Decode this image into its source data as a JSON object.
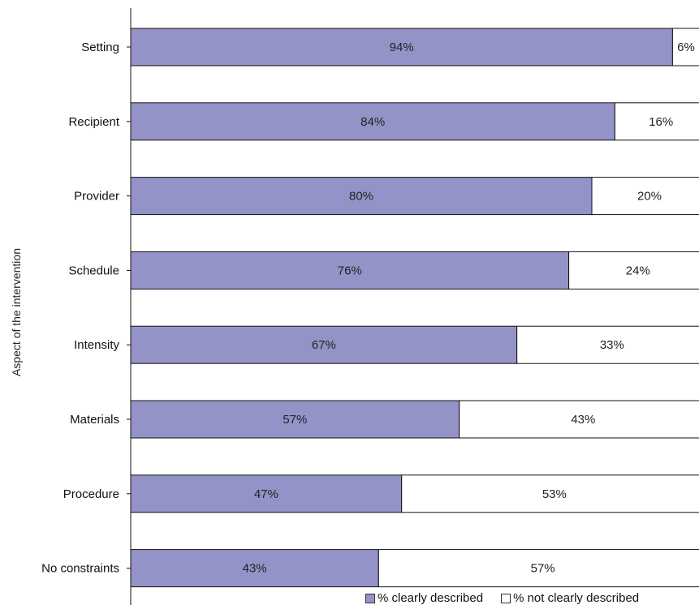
{
  "chart_data": {
    "type": "bar",
    "orientation": "horizontal",
    "stacked": true,
    "ylabel": "Aspect of the intervention",
    "xlabel": "",
    "xlim": [
      0,
      100
    ],
    "categories": [
      "Setting",
      "Recipient",
      "Provider",
      "Schedule",
      "Intensity",
      "Materials",
      "Procedure",
      "No constraints"
    ],
    "series": [
      {
        "name": "% clearly described",
        "color": "#9393c8",
        "values": [
          94,
          84,
          80,
          76,
          67,
          57,
          47,
          43
        ],
        "labels": [
          "94%",
          "84%",
          "80%",
          "76%",
          "67%",
          "57%",
          "47%",
          "43%"
        ]
      },
      {
        "name": "% not clearly described",
        "color": "#ffffff",
        "values": [
          6,
          16,
          20,
          24,
          33,
          43,
          53,
          57
        ],
        "labels": [
          "6%",
          "16%",
          "20%",
          "24%",
          "33%",
          "43%",
          "53%",
          "57%"
        ]
      }
    ],
    "legend_position": "bottom-right"
  }
}
